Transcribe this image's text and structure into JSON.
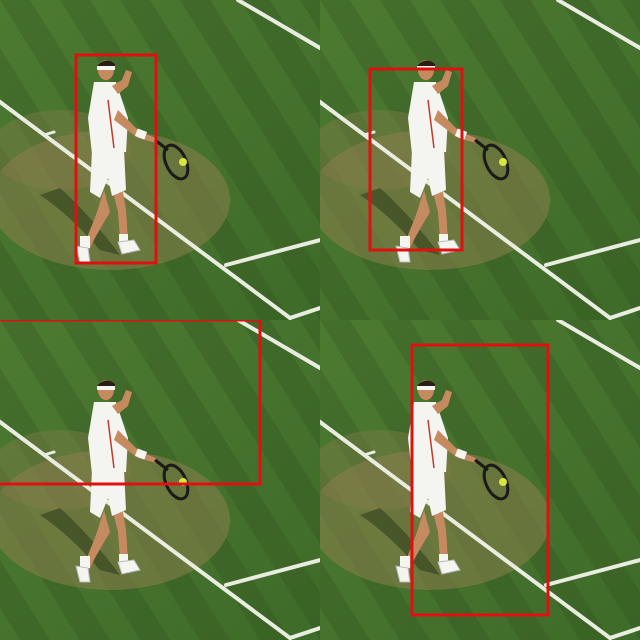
{
  "scene": {
    "subject": "tennis-player",
    "surface": "grass-court"
  },
  "colors": {
    "grass_dark": "#3f6b2a",
    "grass_light": "#4d7a31",
    "worn_patch": "#8b7f4c",
    "court_line": "#e8ede0",
    "player_white": "#f4f4f0",
    "skin": "#c58a60",
    "hair": "#2a1d14",
    "racket_frame": "#1a1a1a",
    "ball": "#d9e63a",
    "box": "#e01010",
    "shadow": "#2b3a1a"
  },
  "panels": [
    {
      "name": "panel-top-left",
      "box_label": "detection-box-1"
    },
    {
      "name": "panel-top-right",
      "box_label": "detection-box-2"
    },
    {
      "name": "panel-bottom-left",
      "box_label": "detection-box-3"
    },
    {
      "name": "panel-bottom-right",
      "box_label": "detection-box-4"
    }
  ]
}
